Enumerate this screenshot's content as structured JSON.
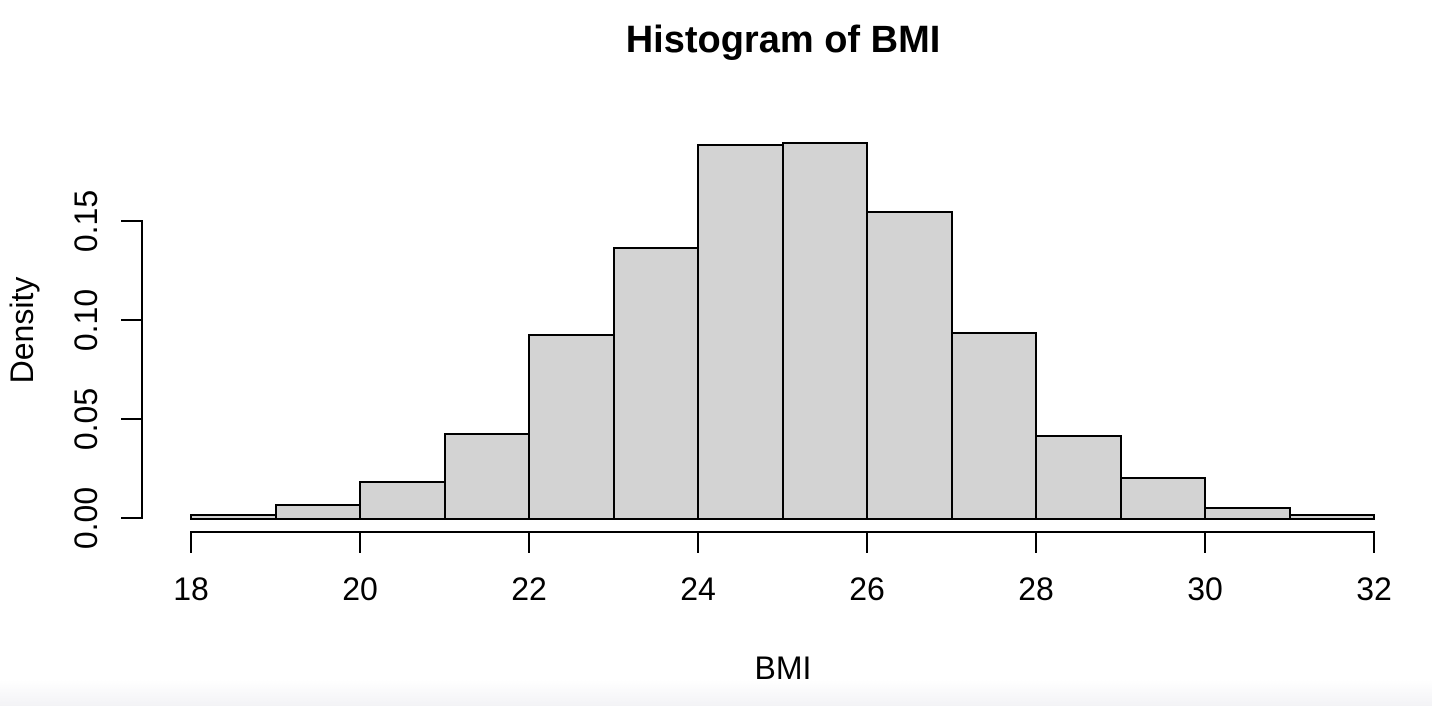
{
  "chart_data": {
    "type": "bar",
    "subtype": "histogram",
    "title": "Histogram of BMI",
    "xlabel": "BMI",
    "ylabel": "Density",
    "bin_edges": [
      18,
      19,
      20,
      21,
      22,
      23,
      24,
      25,
      26,
      27,
      28,
      29,
      30,
      31,
      32
    ],
    "densities": [
      0.002,
      0.007,
      0.019,
      0.043,
      0.093,
      0.137,
      0.189,
      0.19,
      0.155,
      0.094,
      0.042,
      0.021,
      0.0055,
      0.002
    ],
    "x_ticks": [
      {
        "label": "18",
        "value": 18
      },
      {
        "label": "20",
        "value": 20
      },
      {
        "label": "22",
        "value": 22
      },
      {
        "label": "24",
        "value": 24
      },
      {
        "label": "26",
        "value": 26
      },
      {
        "label": "28",
        "value": 28
      },
      {
        "label": "30",
        "value": 30
      },
      {
        "label": "32",
        "value": 32
      }
    ],
    "y_ticks": [
      {
        "label": "0.00",
        "value": 0.0
      },
      {
        "label": "0.05",
        "value": 0.05
      },
      {
        "label": "0.10",
        "value": 0.1
      },
      {
        "label": "0.15",
        "value": 0.15
      }
    ],
    "xlim": [
      18,
      32
    ],
    "ylim": [
      0,
      0.19
    ],
    "grid": false,
    "legend": null,
    "colors": {
      "bar_fill": "#d3d3d3",
      "bar_border": "#000000",
      "axis": "#000000",
      "text": "#000000",
      "background": "#ffffff"
    }
  }
}
